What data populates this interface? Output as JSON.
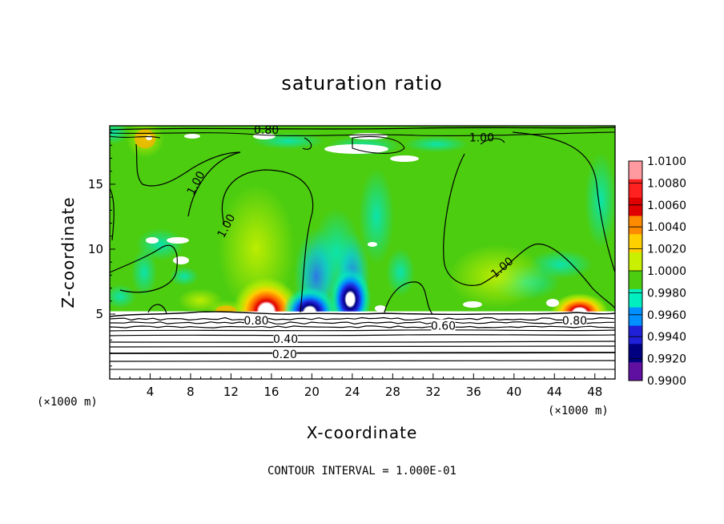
{
  "chart_data": {
    "type": "heatmap",
    "title": "saturation ratio",
    "xlabel": "X-coordinate",
    "ylabel": "Z-coordinate",
    "x_unit_label": "(×1000 m)",
    "z_unit_label": "(×1000 m)",
    "xlim": [
      0,
      50
    ],
    "ylim": [
      0,
      19.5
    ],
    "x_ticks": [
      4,
      8,
      12,
      16,
      20,
      24,
      28,
      32,
      36,
      40,
      44,
      48
    ],
    "y_ticks": [
      5,
      10,
      15
    ],
    "footer": "CONTOUR INTERVAL = 1.000E-01",
    "colorbar": {
      "min": 0.99,
      "max": 1.01,
      "labels": [
        "1.0100",
        "1.0080",
        "1.0060",
        "1.0040",
        "1.0020",
        "1.0000",
        "0.9980",
        "0.9960",
        "0.9940",
        "0.9920",
        "0.9900"
      ],
      "colors": [
        "#ff9aa0",
        "#ff2020",
        "#e00000",
        "#ff8c00",
        "#ffd000",
        "#c8f000",
        "#4ccd10",
        "#00eec0",
        "#0090ff",
        "#2020d8",
        "#000080",
        "#6010a0"
      ]
    },
    "contour_labels": [
      {
        "text": "0.80",
        "x": 15.5,
        "z": 19.2
      },
      {
        "text": "1.00",
        "x": 36.8,
        "z": 18.6
      },
      {
        "text": "1.00",
        "x": 8.5,
        "z": 15.1
      },
      {
        "text": "1.00",
        "x": 11.5,
        "z": 11.8
      },
      {
        "text": "1.00",
        "x": 38.8,
        "z": 8.6
      },
      {
        "text": "0.80",
        "x": 14.5,
        "z": 4.5
      },
      {
        "text": "0.60",
        "x": 33.0,
        "z": 4.1
      },
      {
        "text": "0.80",
        "x": 46.0,
        "z": 4.5
      },
      {
        "text": "0.40",
        "x": 17.4,
        "z": 3.1
      },
      {
        "text": "0.20",
        "x": 17.3,
        "z": 1.9
      }
    ],
    "features": {
      "background_value": 1.0,
      "surface_boundary_z": 5.2,
      "supersaturated_zones": [
        {
          "x": 15.5,
          "z": 5.6,
          "peak": 1.0075
        },
        {
          "x": 46.5,
          "z": 5.5,
          "peak": 1.007
        },
        {
          "x": 11.5,
          "z": 5.6,
          "peak": 1.004
        },
        {
          "x": 3.5,
          "z": 18.5,
          "peak": 1.003
        }
      ],
      "subsaturated_zones": [
        {
          "x": 19.8,
          "z": 6.0,
          "peak": 0.991
        },
        {
          "x": 23.8,
          "z": 7.0,
          "peak": 0.9915
        }
      ]
    }
  }
}
